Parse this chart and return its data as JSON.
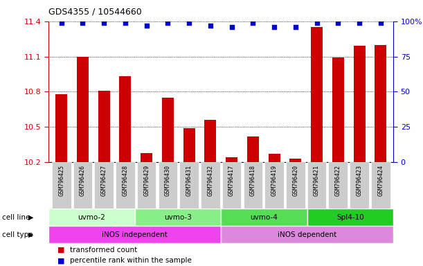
{
  "title": "GDS4355 / 10544660",
  "samples": [
    "GSM796425",
    "GSM796426",
    "GSM796427",
    "GSM796428",
    "GSM796429",
    "GSM796430",
    "GSM796431",
    "GSM796432",
    "GSM796417",
    "GSM796418",
    "GSM796419",
    "GSM796420",
    "GSM796421",
    "GSM796422",
    "GSM796423",
    "GSM796424"
  ],
  "bar_values": [
    10.78,
    11.1,
    10.81,
    10.93,
    10.28,
    10.75,
    10.49,
    10.56,
    10.24,
    10.42,
    10.27,
    10.23,
    11.35,
    11.09,
    11.19,
    11.2
  ],
  "dot_values": [
    99,
    99,
    99,
    99,
    97,
    99,
    99,
    97,
    96,
    99,
    96,
    96,
    99,
    99,
    99,
    99
  ],
  "ylim_left": [
    10.2,
    11.4
  ],
  "ylim_right": [
    0,
    100
  ],
  "yticks_left": [
    10.2,
    10.5,
    10.8,
    11.1,
    11.4
  ],
  "yticks_right": [
    0,
    25,
    50,
    75,
    100
  ],
  "bar_color": "#cc0000",
  "dot_color": "#0000cc",
  "cell_lines": [
    {
      "label": "uvmo-2",
      "start": 0,
      "end": 4,
      "color": "#ccffcc"
    },
    {
      "label": "uvmo-3",
      "start": 4,
      "end": 8,
      "color": "#88ee88"
    },
    {
      "label": "uvmo-4",
      "start": 8,
      "end": 12,
      "color": "#55dd55"
    },
    {
      "label": "Spl4-10",
      "start": 12,
      "end": 16,
      "color": "#22cc22"
    }
  ],
  "cell_types": [
    {
      "label": "iNOS independent",
      "start": 0,
      "end": 8,
      "color": "#ee44ee"
    },
    {
      "label": "iNOS dependent",
      "start": 8,
      "end": 16,
      "color": "#dd88dd"
    }
  ],
  "cell_line_label": "cell line",
  "cell_type_label": "cell type",
  "legend_items": [
    {
      "color": "#cc0000",
      "label": "transformed count"
    },
    {
      "color": "#0000cc",
      "label": "percentile rank within the sample"
    }
  ],
  "background_color": "#ffffff",
  "grid_color": "#000000",
  "axis_label_color_left": "#cc0000",
  "axis_label_color_right": "#0000cc",
  "xtick_bg_color": "#cccccc",
  "spine_color": "#000000"
}
